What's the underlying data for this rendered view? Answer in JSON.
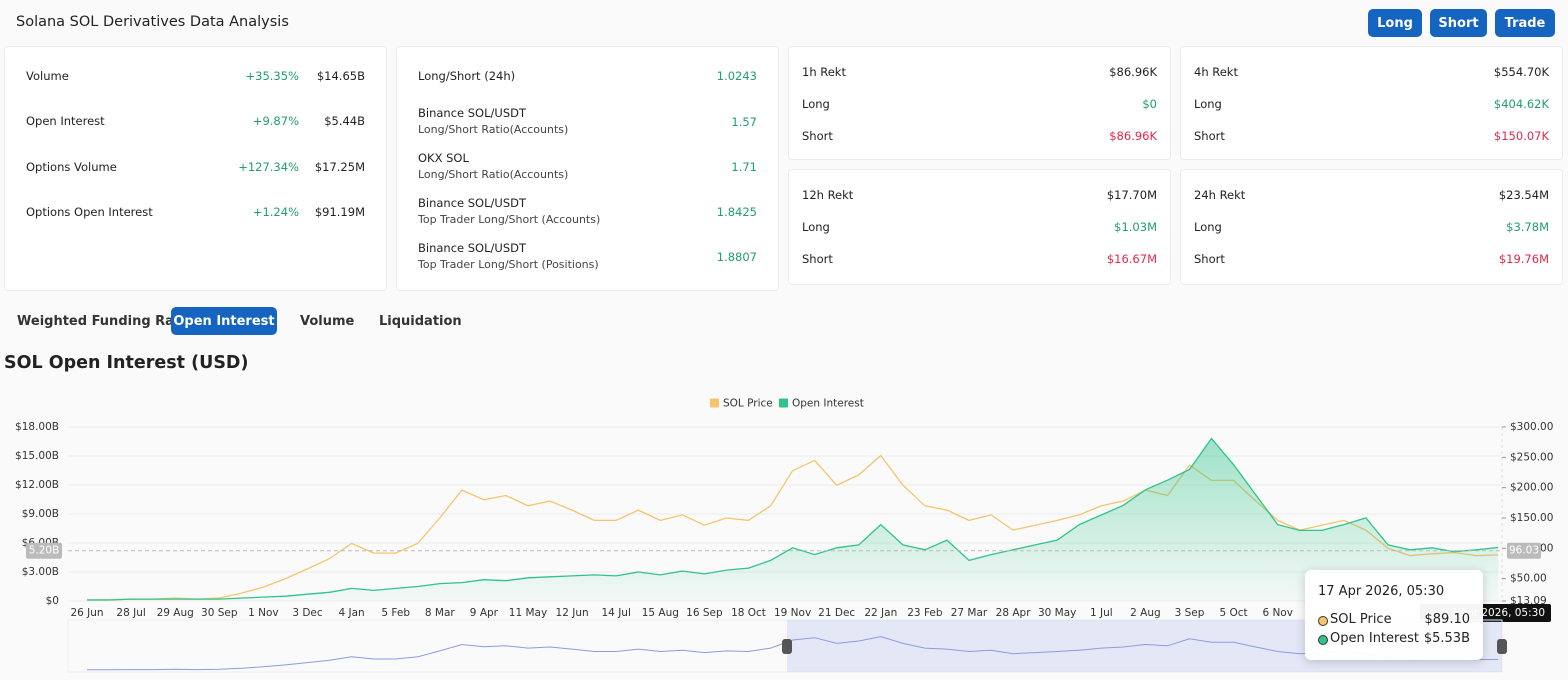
{
  "header": {
    "title": "Solana SOL Derivatives Data Analysis",
    "buttons": [
      "Long",
      "Short",
      "Trade"
    ]
  },
  "stats": {
    "rows": [
      {
        "label": "Volume",
        "change": "+35.35%",
        "value": "$14.65B"
      },
      {
        "label": "Open Interest",
        "change": "+9.87%",
        "value": "$5.44B"
      },
      {
        "label": "Options Volume",
        "change": "+127.34%",
        "value": "$17.25M"
      },
      {
        "label": "Options Open Interest",
        "change": "+1.24%",
        "value": "$91.19M"
      }
    ]
  },
  "ratios": {
    "rows": [
      {
        "label": "Long/Short (24h)",
        "value": "1.0243"
      },
      {
        "label": "Binance SOL/USDT",
        "sublabel": "Long/Short Ratio(Accounts)",
        "value": "1.57"
      },
      {
        "label": "OKX SOL",
        "sublabel": "Long/Short Ratio(Accounts)",
        "value": "1.71"
      },
      {
        "label": "Binance SOL/USDT",
        "sublabel": "Top Trader Long/Short (Accounts)",
        "value": "1.8425"
      },
      {
        "label": "Binance SOL/USDT",
        "sublabel": "Top Trader Long/Short (Positions)",
        "value": "1.8807"
      }
    ]
  },
  "rekt": [
    {
      "title": "1h Rekt",
      "total": "$86.96K",
      "long_label": "Long",
      "long": "$0",
      "short_label": "Short",
      "short": "$86.96K"
    },
    {
      "title": "4h Rekt",
      "total": "$554.70K",
      "long_label": "Long",
      "long": "$404.62K",
      "short_label": "Short",
      "short": "$150.07K"
    },
    {
      "title": "12h Rekt",
      "total": "$17.70M",
      "long_label": "Long",
      "long": "$1.03M",
      "short_label": "Short",
      "short": "$16.67M"
    },
    {
      "title": "24h Rekt",
      "total": "$23.54M",
      "long_label": "Long",
      "long": "$3.78M",
      "short_label": "Short",
      "short": "$19.76M"
    }
  ],
  "tabs": [
    "Weighted Funding Rate",
    "Open Interest",
    "Volume",
    "Liquidation"
  ],
  "chart_data": {
    "type": "line",
    "title": "SOL Open Interest (USD)",
    "categories": [
      "26 Jun",
      null,
      "28 Jul",
      null,
      "29 Aug",
      null,
      "30 Sep",
      null,
      "1 Nov",
      null,
      "3 Dec",
      null,
      "4 Jan",
      null,
      "5 Feb",
      null,
      "8 Mar",
      null,
      "9 Apr",
      null,
      "11 May",
      null,
      "12 Jun",
      null,
      "14 Jul",
      null,
      "15 Aug",
      null,
      "16 Sep",
      null,
      "18 Oct",
      null,
      "19 Nov",
      null,
      "21 Dec",
      null,
      "22 Jan",
      null,
      "23 Feb",
      null,
      "27 Mar",
      null,
      "28 Apr",
      null,
      "30 May",
      null,
      "1 Jul",
      null,
      "2 Aug",
      null,
      "3 Sep",
      null,
      "5 Oct",
      null,
      "6 Nov",
      null,
      null,
      null,
      null,
      null,
      null,
      null,
      null,
      null,
      null
    ],
    "series": [
      {
        "name": "SOL Price",
        "color": "#f5c56e",
        "axis": "y2",
        "values": [
          15,
          15,
          16,
          16,
          18,
          16,
          18,
          26,
          36,
          50,
          66,
          83,
          108,
          92,
          92,
          108,
          150,
          196,
          180,
          187,
          170,
          178,
          163,
          146,
          146,
          163,
          146,
          155,
          138,
          150,
          146,
          170,
          228,
          245,
          204,
          221,
          253,
          204,
          170,
          163,
          146,
          155,
          130,
          138,
          146,
          155,
          170,
          178,
          196,
          187,
          237,
          212,
          212,
          178,
          146,
          130,
          138,
          146,
          130,
          100,
          88,
          91,
          93,
          88,
          89.1
        ]
      },
      {
        "name": "Open Interest",
        "color": "#2fc48a",
        "values": [
          0.1,
          0.1,
          0.2,
          0.2,
          0.2,
          0.2,
          0.2,
          0.3,
          0.4,
          0.5,
          0.7,
          0.9,
          1.3,
          1.1,
          1.3,
          1.5,
          1.8,
          1.9,
          2.2,
          2.1,
          2.4,
          2.5,
          2.6,
          2.7,
          2.6,
          3.0,
          2.7,
          3.1,
          2.8,
          3.2,
          3.4,
          4.2,
          5.5,
          4.8,
          5.5,
          5.8,
          7.9,
          5.8,
          5.3,
          6.3,
          4.2,
          4.8,
          5.3,
          5.8,
          6.3,
          7.9,
          8.9,
          9.9,
          11.5,
          12.5,
          13.6,
          16.8,
          14.1,
          11.0,
          7.9,
          7.3,
          7.3,
          7.9,
          8.6,
          5.8,
          5.3,
          5.5,
          5.1,
          5.3,
          5.53
        ]
      }
    ],
    "ylim": [
      0,
      18
    ],
    "yticks": [
      {
        "value": 0,
        "label": "$0"
      },
      {
        "value": 3,
        "label": "$3.00B"
      },
      {
        "value": 6,
        "label": "$6.00B"
      },
      {
        "value": 9,
        "label": "$9.00B"
      },
      {
        "value": 12,
        "label": "$12.00B"
      },
      {
        "value": 15,
        "label": "$15.00B"
      },
      {
        "value": 18,
        "label": "$18.00B"
      }
    ],
    "y2lim": [
      13.09,
      300
    ],
    "y2ticks": [
      {
        "value": 13.09,
        "label": "$13.09"
      },
      {
        "value": 50,
        "label": "$50.00"
      },
      {
        "value": 100,
        "label": "$100.00"
      },
      {
        "value": 150,
        "label": "$150.00"
      },
      {
        "value": 200,
        "label": "$200.00"
      },
      {
        "value": 250,
        "label": "$250.00"
      },
      {
        "value": 300,
        "label": "$300.00"
      }
    ],
    "grid": true,
    "crosshair": {
      "value": 5.2,
      "label": "5.20B",
      "y2_label": "96.03"
    },
    "tooltip": {
      "title": "17 Apr 2026, 05:30",
      "labels": [
        "$89.10",
        "$5.53B"
      ]
    }
  }
}
